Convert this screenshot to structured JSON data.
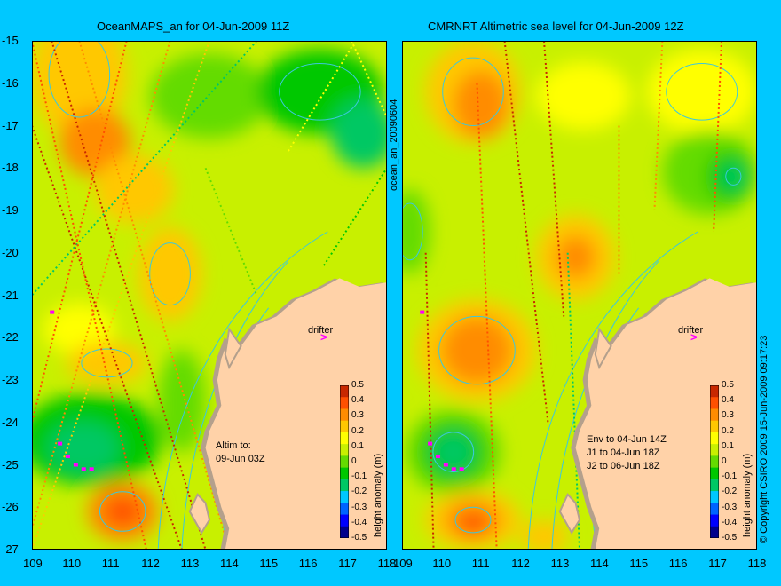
{
  "panels": [
    {
      "title": "OceanMAPS_an for 04-Jun-2009 11Z",
      "note": "Altim to:\n09-Jun 03Z",
      "drifter_label": "drifter",
      "colorbar_label": "height anomaly (m)"
    },
    {
      "title": "CMRNRT Altimetric sea level  for 04-Jun-2009 12Z",
      "note": "Env to 04-Jun 14Z\nJ1 to 04-Jun 18Z\nJ2 to 06-Jun 18Z",
      "drifter_label": "drifter",
      "colorbar_label": "height anomaly (m)"
    }
  ],
  "side_label_middle": "ocean_an_20090604",
  "side_label_right": "© Copyright CSIRO 2009    15-Jun-2009 09:17:23",
  "axes": {
    "lat_ticks": [
      "-15",
      "-16",
      "-17",
      "-18",
      "-19",
      "-20",
      "-21",
      "-22",
      "-23",
      "-24",
      "-25",
      "-26",
      "-27"
    ],
    "lon_ticks": [
      "109",
      "110",
      "111",
      "112",
      "113",
      "114",
      "115",
      "116",
      "117",
      "118"
    ],
    "lat_range": [
      -27,
      -15
    ],
    "lon_range": [
      109,
      118
    ]
  },
  "colorbar": {
    "ticks": [
      "0.5",
      "0.4",
      "0.3",
      "0.2",
      "0.1",
      "0",
      "-0.1",
      "-0.2",
      "-0.3",
      "-0.4",
      "-0.5"
    ],
    "range": [
      -0.5,
      0.5
    ],
    "colors": [
      "#00008c",
      "#0000ff",
      "#0064ff",
      "#00c8ff",
      "#00c864",
      "#00c800",
      "#64dc00",
      "#c8f000",
      "#ffff00",
      "#ffc800",
      "#ff8c00",
      "#ff5000",
      "#c82800"
    ]
  },
  "colors": {
    "background": "#00c8ff",
    "land": "#ffd2a8",
    "shelf": "#b4a08c",
    "contour": "#3cc8dc",
    "drifter_marker": "#ff00ff"
  }
}
